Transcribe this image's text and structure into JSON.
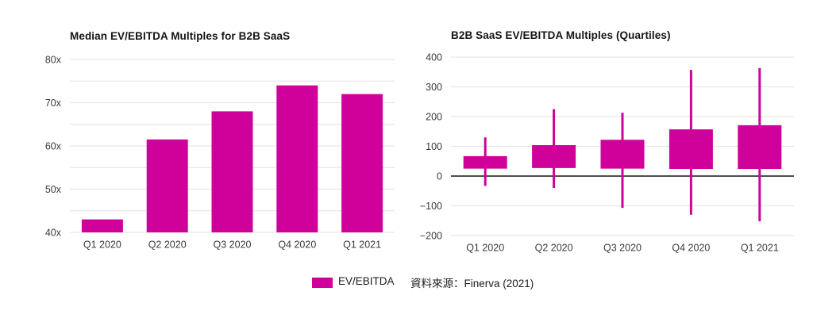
{
  "page": {
    "background": "#ffffff"
  },
  "colors": {
    "accent_magenta": "#D0019A",
    "gridline": "#e7e7e7",
    "zero_line": "#4d4d4d",
    "title_text": "#141414",
    "tick_text": "#3a3a3a"
  },
  "legend": {
    "label": "EV/EBITDA",
    "swatch_color": "#D0019A"
  },
  "source_note": "資料來源：Finerva (2021)",
  "chart_data": [
    {
      "type": "bar",
      "title": "Median EV/EBITDA Multiples for B2B SaaS",
      "categories": [
        "Q1 2020",
        "Q2 2020",
        "Q3 2020",
        "Q4 2020",
        "Q1 2021"
      ],
      "series_name": "EV/EBITDA",
      "values": [
        43,
        61.5,
        68,
        74,
        72
      ],
      "ylim": [
        40,
        80
      ],
      "grid_step": 5,
      "grid": true,
      "legend_position": "bottom",
      "yticks": [
        {
          "value": 80,
          "label": "80x"
        },
        {
          "value": 70,
          "label": "70x"
        },
        {
          "value": 60,
          "label": "60x"
        },
        {
          "value": 50,
          "label": "50x"
        },
        {
          "value": 40,
          "label": "40x"
        }
      ],
      "bar_color": "#D0019A"
    },
    {
      "type": "candlestick",
      "title": "B2B SaaS EV/EBITDA Multiples (Quartiles)",
      "categories": [
        "Q1 2020",
        "Q2 2020",
        "Q3 2020",
        "Q4 2020",
        "Q1 2021"
      ],
      "series": [
        {
          "name": "EV/EBITDA",
          "points": [
            {
              "low": -33,
              "q1": 25,
              "q3": 67,
              "high": 130
            },
            {
              "low": -40,
              "q1": 27,
              "q3": 104,
              "high": 225
            },
            {
              "low": -107,
              "q1": 25,
              "q3": 122,
              "high": 213
            },
            {
              "low": -130,
              "q1": 24,
              "q3": 157,
              "high": 357
            },
            {
              "low": -152,
              "q1": 24,
              "q3": 171,
              "high": 363
            }
          ]
        }
      ],
      "ylim": [
        -200,
        400
      ],
      "grid_step": 100,
      "grid": true,
      "zero_line": true,
      "yticks": [
        {
          "value": 400,
          "label": "400"
        },
        {
          "value": 300,
          "label": "300"
        },
        {
          "value": 200,
          "label": "200"
        },
        {
          "value": 100,
          "label": "100"
        },
        {
          "value": 0,
          "label": "0"
        },
        {
          "value": -100,
          "label": "−100"
        },
        {
          "value": -200,
          "label": "−200"
        }
      ],
      "box_color": "#D0019A"
    }
  ]
}
